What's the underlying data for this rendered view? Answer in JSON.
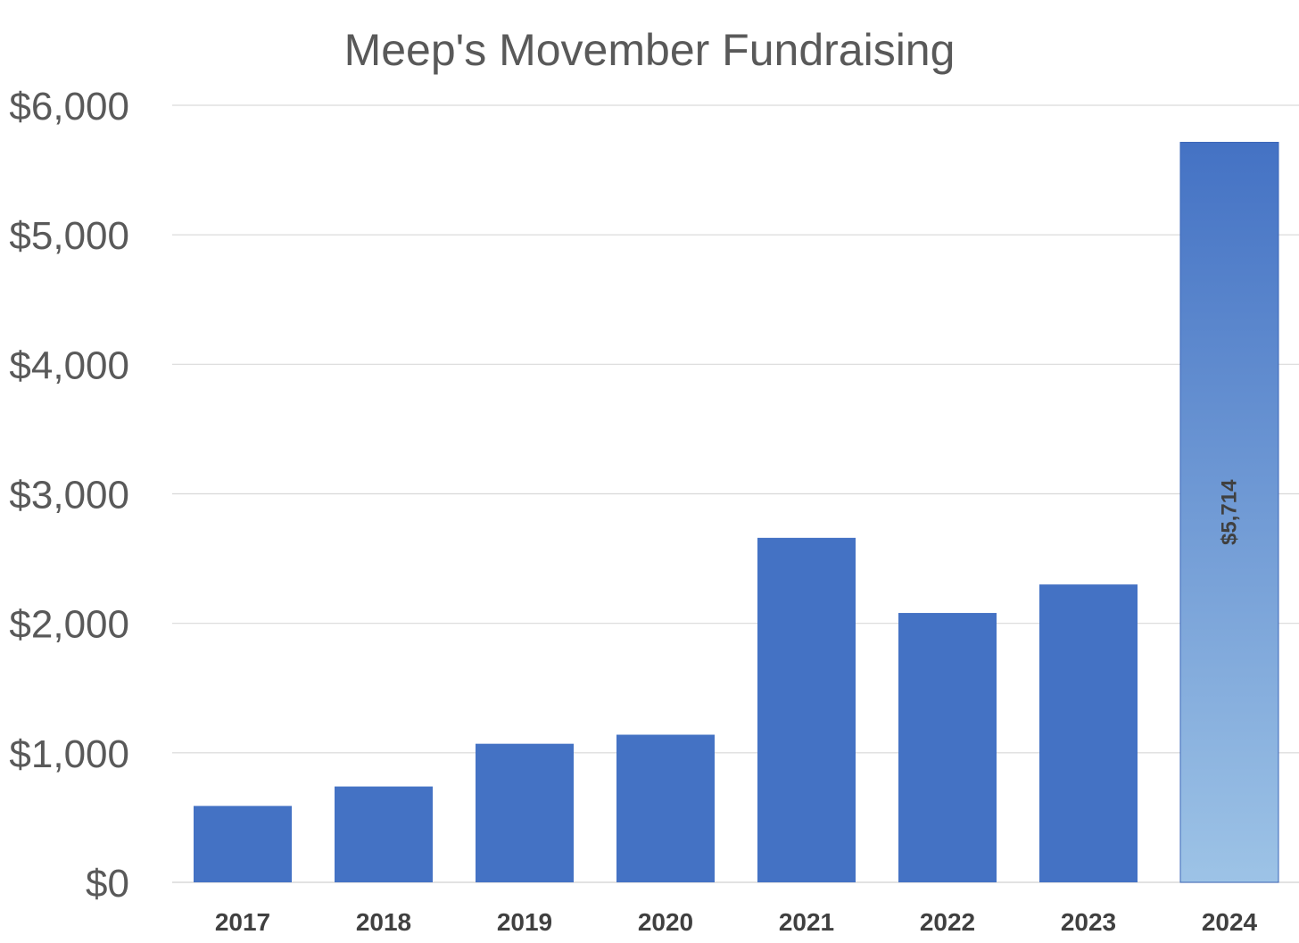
{
  "chart_data": {
    "type": "bar",
    "title": "Meep's Movember Fundraising",
    "xlabel": "",
    "ylabel": "",
    "categories": [
      "2017",
      "2018",
      "2019",
      "2020",
      "2021",
      "2022",
      "2023",
      "2024"
    ],
    "values": [
      590,
      740,
      1070,
      1140,
      2660,
      2080,
      2300,
      5714
    ],
    "ylim": [
      0,
      6000
    ],
    "y_ticks": [
      0,
      1000,
      2000,
      3000,
      4000,
      5000,
      6000
    ],
    "y_tick_labels": [
      "$0",
      "$1,000",
      "$2,000",
      "$3,000",
      "$4,000",
      "$5,000",
      "$6,000"
    ],
    "data_labels": [
      {
        "category": "2024",
        "text": "$5,714",
        "orientation": "vertical",
        "position": "center"
      }
    ],
    "grid": true,
    "legend": "none",
    "colors": {
      "bar": "#4472c4",
      "highlight_gradient_top": "#4472c4",
      "highlight_gradient_bottom": "#9dc3e6",
      "gridline": "#d9d9d9",
      "text": "#595959"
    }
  }
}
